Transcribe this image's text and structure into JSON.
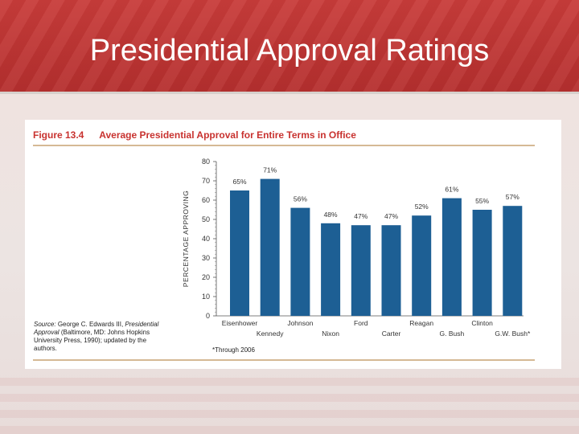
{
  "slide": {
    "title": "Presidential Approval Ratings"
  },
  "figure": {
    "number": "Figure 13.4",
    "title": "Average Presidential Approval for Entire Terms in Office",
    "source_label": "Source:",
    "source_text": "George C. Edwards III,",
    "source_book": "Presidential Approval",
    "source_rest": "(Baltimore, MD: Johns Hopkins University Press, 1990); updated by the authors.",
    "note": "*Through 2006"
  },
  "colors": {
    "bar": "#1d5f94",
    "title_red": "#c8322f",
    "header_red": "#c0393a"
  },
  "chart_data": {
    "type": "bar",
    "categories": [
      "Eisenhower",
      "Kennedy",
      "Johnson",
      "Nixon",
      "Ford",
      "Carter",
      "Reagan",
      "G. Bush",
      "Clinton",
      "G.W. Bush*"
    ],
    "values": [
      65,
      71,
      56,
      48,
      47,
      47,
      52,
      61,
      55,
      57
    ],
    "value_labels": [
      "65%",
      "71%",
      "56%",
      "48%",
      "47%",
      "47%",
      "52%",
      "61%",
      "55%",
      "57%"
    ],
    "ylabel": "PERCENTAGE APPROVING",
    "ylim": [
      0,
      80
    ],
    "yticks": [
      0,
      10,
      20,
      30,
      40,
      50,
      60,
      70,
      80
    ],
    "grid": false
  }
}
